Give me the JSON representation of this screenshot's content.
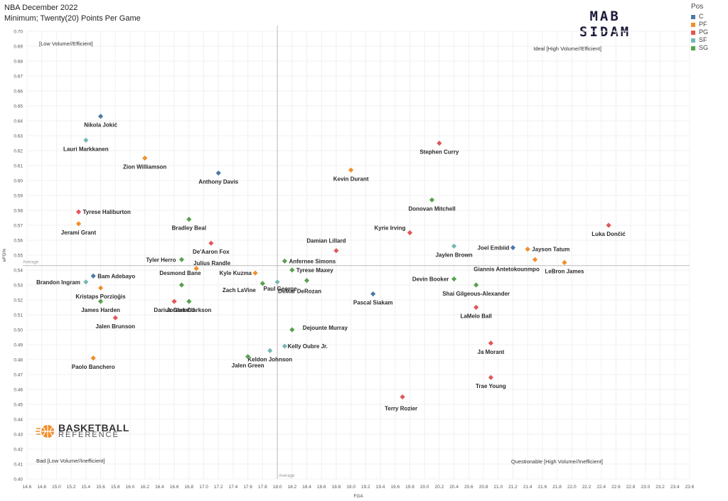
{
  "header": {
    "title": "NBA December 2022",
    "subtitle": "Minimum; Twenty(20) Points Per Game"
  },
  "brand": {
    "line1": "MAB",
    "line2": "SIDAM"
  },
  "logo": {
    "line1": "BASKETBALL",
    "line2": "REFERENCE"
  },
  "legend": {
    "title": "Pos",
    "items": [
      {
        "label": "C",
        "color": "#4e79a7"
      },
      {
        "label": "PF",
        "color": "#f28e2b"
      },
      {
        "label": "PG",
        "color": "#e15759"
      },
      {
        "label": "SF",
        "color": "#76b7b2"
      },
      {
        "label": "SG",
        "color": "#59a14f"
      }
    ]
  },
  "chart_data": {
    "type": "scatter",
    "xlabel": "FGA",
    "ylabel": "eFG%",
    "xlim": [
      14.6,
      23.6
    ],
    "ylim": [
      0.4,
      0.7
    ],
    "x_tick_step": 0.2,
    "y_tick_step": 0.01,
    "grid": true,
    "reference_lines": {
      "x_average": 18.0,
      "y_average": 0.543,
      "x_label": "Average",
      "y_label": "Average"
    },
    "quadrant_labels": {
      "top_left": "[Low Volume//Efficient]",
      "top_right": "Ideal [High Volume//Efficient]",
      "bottom_left": "Bad [Low Volume//Inefficient]",
      "bottom_right": "Questionable [High Volume//Inefficient]"
    },
    "points": [
      {
        "name": "Nikola Jokić",
        "pos": "C",
        "x": 15.6,
        "y": 0.643
      },
      {
        "name": "Lauri Markkanen",
        "pos": "SF",
        "x": 15.4,
        "y": 0.627
      },
      {
        "name": "Zion Williamson",
        "pos": "PF",
        "x": 16.2,
        "y": 0.615
      },
      {
        "name": "Anthony Davis",
        "pos": "C",
        "x": 17.2,
        "y": 0.605
      },
      {
        "name": "Kevin Durant",
        "pos": "PF",
        "x": 19.0,
        "y": 0.607
      },
      {
        "name": "Stephen Curry",
        "pos": "PG",
        "x": 20.2,
        "y": 0.625
      },
      {
        "name": "Donovan Mitchell",
        "pos": "SG",
        "x": 20.1,
        "y": 0.587
      },
      {
        "name": "Luka Dončić",
        "pos": "PG",
        "x": 22.5,
        "y": 0.57
      },
      {
        "name": "Tyrese Haliburton",
        "pos": "PG",
        "x": 15.3,
        "y": 0.579
      },
      {
        "name": "Jerami Grant",
        "pos": "PF",
        "x": 15.3,
        "y": 0.571
      },
      {
        "name": "Bradley Beal",
        "pos": "SG",
        "x": 16.8,
        "y": 0.574
      },
      {
        "name": "Kyrie Irving",
        "pos": "PG",
        "x": 19.8,
        "y": 0.565
      },
      {
        "name": "Jaylen Brown",
        "pos": "SF",
        "x": 20.4,
        "y": 0.556
      },
      {
        "name": "Joel Embiid",
        "pos": "C",
        "x": 21.2,
        "y": 0.555
      },
      {
        "name": "Jayson Tatum",
        "pos": "PF",
        "x": 21.4,
        "y": 0.554
      },
      {
        "name": "Giannis Antetokounmpo",
        "pos": "PF",
        "x": 21.5,
        "y": 0.547
      },
      {
        "name": "LeBron James",
        "pos": "PF",
        "x": 21.9,
        "y": 0.545
      },
      {
        "name": "Damian Lillard",
        "pos": "PG",
        "x": 18.8,
        "y": 0.553
      },
      {
        "name": "De'Aaron Fox",
        "pos": "PG",
        "x": 17.1,
        "y": 0.558
      },
      {
        "name": "Tyler Herro",
        "pos": "SG",
        "x": 16.7,
        "y": 0.547
      },
      {
        "name": "Julius Randle",
        "pos": "PF",
        "x": 16.9,
        "y": 0.541
      },
      {
        "name": "Anfernee Simons",
        "pos": "SG",
        "x": 18.1,
        "y": 0.546
      },
      {
        "name": "Tyrese Maxey",
        "pos": "SG",
        "x": 18.2,
        "y": 0.54
      },
      {
        "name": "Kyle Kuzma",
        "pos": "PF",
        "x": 17.7,
        "y": 0.538
      },
      {
        "name": "Bam Adebayo",
        "pos": "C",
        "x": 15.5,
        "y": 0.536
      },
      {
        "name": "Brandon Ingram",
        "pos": "SF",
        "x": 15.4,
        "y": 0.532
      },
      {
        "name": "Desmond Bane",
        "pos": "SG",
        "x": 16.7,
        "y": 0.53
      },
      {
        "name": "Kristaps Porziņģis",
        "pos": "PF",
        "x": 15.6,
        "y": 0.528
      },
      {
        "name": "Zach LaVine",
        "pos": "SG",
        "x": 17.8,
        "y": 0.531
      },
      {
        "name": "Paul George",
        "pos": "SF",
        "x": 18.0,
        "y": 0.532
      },
      {
        "name": "DeMar DeRozan",
        "pos": "SG",
        "x": 18.4,
        "y": 0.533
      },
      {
        "name": "Devin Booker",
        "pos": "SG",
        "x": 20.4,
        "y": 0.534
      },
      {
        "name": "Shai Gilgeous-Alexander",
        "pos": "SG",
        "x": 20.7,
        "y": 0.53
      },
      {
        "name": "Pascal Siakam",
        "pos": "C",
        "x": 19.3,
        "y": 0.524
      },
      {
        "name": "Jordan Clarkson",
        "pos": "SG",
        "x": 16.8,
        "y": 0.519
      },
      {
        "name": "Darius Garland",
        "pos": "PG",
        "x": 16.6,
        "y": 0.519
      },
      {
        "name": "James Harden",
        "pos": "SG",
        "x": 15.6,
        "y": 0.519
      },
      {
        "name": "Jalen Brunson",
        "pos": "PG",
        "x": 15.8,
        "y": 0.508
      },
      {
        "name": "LaMelo Ball",
        "pos": "PG",
        "x": 20.7,
        "y": 0.515
      },
      {
        "name": "Dejounte Murray",
        "pos": "SG",
        "x": 18.2,
        "y": 0.5
      },
      {
        "name": "Kelly Oubre Jr.",
        "pos": "SF",
        "x": 18.1,
        "y": 0.489
      },
      {
        "name": "Keldon Johnson",
        "pos": "SF",
        "x": 17.9,
        "y": 0.486
      },
      {
        "name": "Jalen Green",
        "pos": "SG",
        "x": 17.6,
        "y": 0.482
      },
      {
        "name": "Paolo Banchero",
        "pos": "PF",
        "x": 15.5,
        "y": 0.481
      },
      {
        "name": "Ja Morant",
        "pos": "PG",
        "x": 20.9,
        "y": 0.491
      },
      {
        "name": "Trae Young",
        "pos": "PG",
        "x": 20.9,
        "y": 0.468
      },
      {
        "name": "Terry Rozier",
        "pos": "PG",
        "x": 19.7,
        "y": 0.455
      }
    ]
  }
}
